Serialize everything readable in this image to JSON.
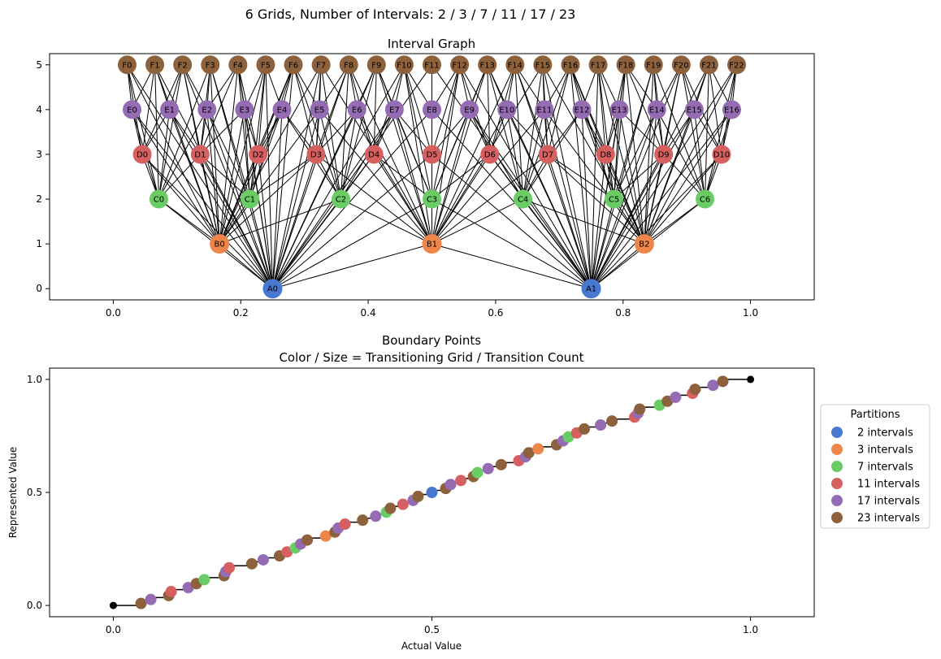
{
  "suptitle": "6 Grids, Number of Intervals: 2 / 3 / 7 / 11 / 17 / 23",
  "colors": {
    "A": "#4878d0",
    "B": "#ee854a",
    "C": "#6acc64",
    "D": "#d65f5f",
    "E": "#956cb4",
    "F": "#8c613c"
  },
  "chart_data": [
    {
      "type": "network",
      "title": "Interval Graph",
      "xlim": [
        -0.1,
        1.1
      ],
      "ylim": [
        -0.25,
        5.25
      ],
      "xticks": [
        0.0,
        0.2,
        0.4,
        0.6,
        0.8,
        1.0
      ],
      "xtick_labels": [
        "0.0",
        "0.2",
        "0.4",
        "0.6",
        "0.8",
        "1.0"
      ],
      "yticks": [
        0,
        1,
        2,
        3,
        4,
        5
      ],
      "ytick_labels": [
        "0",
        "1",
        "2",
        "3",
        "4",
        "5"
      ],
      "levels": [
        {
          "prefix": "A",
          "y": 0,
          "intervals": 2
        },
        {
          "prefix": "B",
          "y": 1,
          "intervals": 3
        },
        {
          "prefix": "C",
          "y": 2,
          "intervals": 7
        },
        {
          "prefix": "D",
          "y": 3,
          "intervals": 11
        },
        {
          "prefix": "E",
          "y": 4,
          "intervals": 17
        },
        {
          "prefix": "F",
          "y": 5,
          "intervals": 23
        }
      ],
      "edges": "every pair of nodes on different levels whose intervals overlap"
    },
    {
      "type": "scatter",
      "title": "Boundary Points",
      "subtitle": "Color / Size = Transitioning Grid / Transition Count",
      "xlabel": "Actual Value",
      "ylabel": "Represented Value",
      "xlim": [
        -0.1,
        1.1
      ],
      "ylim": [
        -0.05,
        1.05
      ],
      "xticks": [
        0.0,
        0.5,
        1.0
      ],
      "xtick_labels": [
        "0.0",
        "0.5",
        "1.0"
      ],
      "yticks": [
        0.0,
        0.5,
        1.0
      ],
      "ytick_labels": [
        "0.0",
        "0.5",
        "1.0"
      ],
      "legend": {
        "title": "Partitions",
        "placement": "outside-right",
        "entries": [
          "2 intervals",
          "3 intervals",
          "7 intervals",
          "11 intervals",
          "17 intervals",
          "23 intervals"
        ]
      },
      "series": [
        {
          "name": "2 intervals",
          "intervals": 2
        },
        {
          "name": "3 intervals",
          "intervals": 3
        },
        {
          "name": "7 intervals",
          "intervals": 7
        },
        {
          "name": "11 intervals",
          "intervals": 11
        },
        {
          "name": "17 intervals",
          "intervals": 17
        },
        {
          "name": "23 intervals",
          "intervals": 23
        }
      ],
      "endpoints": [
        [
          0.0,
          0.0
        ],
        [
          1.0,
          1.0
        ]
      ],
      "step_line": "represented value jumps at every boundary point"
    }
  ]
}
